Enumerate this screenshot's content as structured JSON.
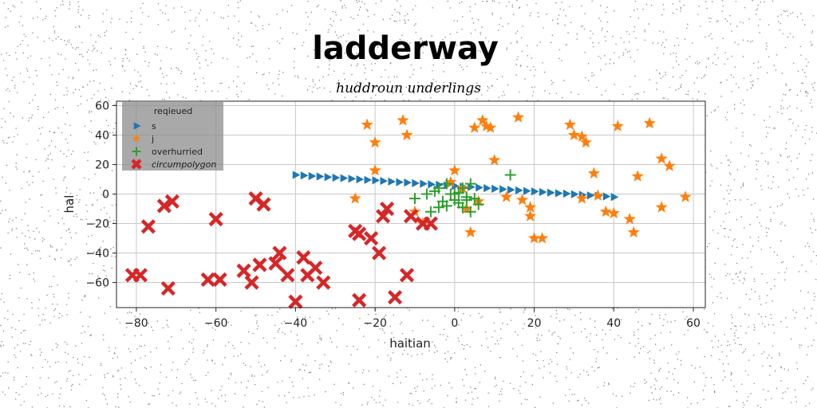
{
  "chart_data": {
    "type": "scatter",
    "title": "ladderway",
    "subtitle": "huddroun underlings",
    "xlabel": "haitian",
    "ylabel": "hal",
    "xlim": [
      -85,
      63
    ],
    "ylim": [
      -77,
      63
    ],
    "xticks": [
      -80,
      -60,
      -40,
      -20,
      0,
      20,
      40,
      60
    ],
    "yticks": [
      60,
      40,
      20,
      0,
      -20,
      -40,
      -60
    ],
    "grid": true,
    "legend": {
      "title": "reqieued",
      "placement": "top-left",
      "entries": [
        "s",
        "j",
        "overhurried",
        "circumpolygon"
      ]
    },
    "series": [
      {
        "name": "s",
        "marker": "triangle-right",
        "color": "#1f77b4",
        "x": [
          -40,
          -38,
          -36,
          -34,
          -32,
          -30,
          -28,
          -26,
          -24,
          -22,
          -20,
          -18,
          -16,
          -14,
          -12,
          -10,
          -8,
          -6,
          -4,
          -2,
          0,
          2,
          4,
          6,
          8,
          10,
          12,
          14,
          16,
          18,
          20,
          22,
          24,
          26,
          28,
          30,
          32,
          34,
          36,
          38,
          40
        ],
        "y": [
          13,
          12.6,
          12.2,
          11.9,
          11.5,
          11.1,
          10.8,
          10.4,
          10,
          9.6,
          9.3,
          8.9,
          8.5,
          8.1,
          7.8,
          7.4,
          7,
          6.6,
          6.3,
          5.9,
          5.5,
          5.1,
          4.8,
          4.4,
          4,
          3.6,
          3.3,
          2.9,
          2.5,
          2.1,
          1.8,
          1.4,
          1,
          0.6,
          0.3,
          -0.1,
          -0.5,
          -0.9,
          -1.2,
          -1.6,
          -2
        ]
      },
      {
        "name": "j",
        "marker": "star",
        "color": "#ff7f0e",
        "x": [
          -22,
          -20,
          -20,
          -13,
          -12,
          -25,
          -10,
          -8,
          0,
          -1,
          2,
          6,
          5,
          7,
          8,
          9,
          3,
          4,
          10,
          16,
          13,
          17,
          19,
          19,
          20,
          22,
          29,
          30,
          32,
          32,
          33,
          35,
          36,
          38,
          40,
          41,
          44,
          45,
          46,
          49,
          52,
          52,
          54,
          58
        ],
        "y": [
          47,
          35,
          16,
          50,
          40,
          -3,
          -12,
          -20,
          16,
          8,
          4,
          -5,
          45,
          50,
          46,
          45,
          -10,
          -26,
          23,
          52,
          -2,
          -4,
          -9,
          -15,
          -30,
          -30,
          47,
          40,
          39,
          -3,
          35,
          14,
          -1,
          -12,
          -13,
          46,
          -17,
          -26,
          12,
          48,
          24,
          -9,
          19,
          -2
        ]
      },
      {
        "name": "overhurried",
        "marker": "plus",
        "color": "#2ca02c",
        "x": [
          -10,
          -7,
          -5,
          -4,
          -6,
          -3,
          -2,
          -1,
          0,
          1,
          2,
          3,
          4,
          5,
          6,
          3,
          4,
          2,
          0,
          -2,
          14,
          1,
          -4
        ],
        "y": [
          -3,
          0,
          2,
          4,
          -12,
          -5,
          -8,
          0,
          -4,
          -6,
          -9,
          -4,
          -12,
          -3,
          -7,
          -2,
          7,
          4,
          0,
          7,
          13,
          1,
          -9
        ]
      },
      {
        "name": "circumpolygon",
        "marker": "x",
        "color": "#d62728",
        "x": [
          -81,
          -79,
          -77,
          -73,
          -72,
          -71,
          -62,
          -59,
          -60,
          -53,
          -51,
          -50,
          -49,
          -48,
          -45,
          -44,
          -42,
          -40,
          -38,
          -37,
          -35,
          -33,
          -25,
          -24,
          -24,
          -21,
          -19,
          -18,
          -17,
          -15,
          -12,
          -8,
          -11,
          -6
        ],
        "y": [
          -55,
          -55,
          -22,
          -8,
          -64,
          -5,
          -58,
          -58,
          -17,
          -52,
          -60,
          -3,
          -48,
          -7,
          -47,
          -40,
          -55,
          -73,
          -43,
          -55,
          -50,
          -60,
          -25,
          -72,
          -27,
          -30,
          -40,
          -15,
          -10,
          -70,
          -55,
          -20,
          -15,
          -20
        ]
      }
    ]
  }
}
